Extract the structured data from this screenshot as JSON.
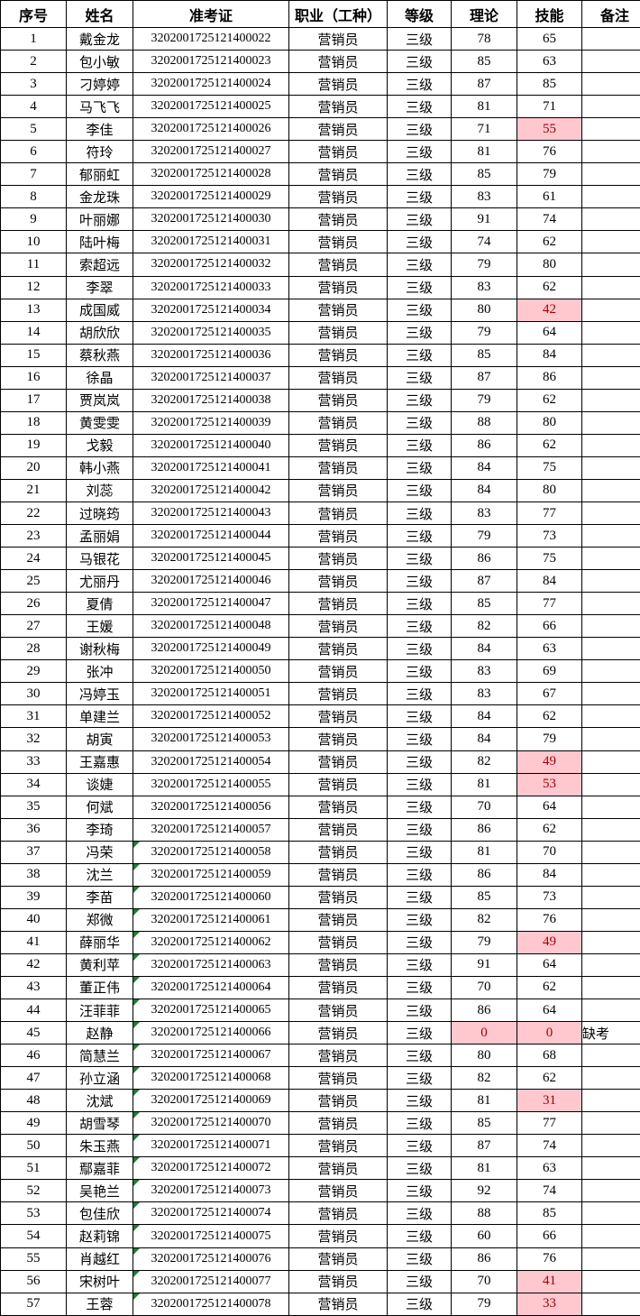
{
  "colors": {
    "low_score_bg": "#ffc7ce",
    "low_score_text": "#9c0006",
    "text_marker_green": "#1e7e34",
    "grid_border": "#000000"
  },
  "table": {
    "columns": [
      {
        "key": "no",
        "label": "序号"
      },
      {
        "key": "name",
        "label": "姓名"
      },
      {
        "key": "id",
        "label": "准考证"
      },
      {
        "key": "job",
        "label": "职业（工种）"
      },
      {
        "key": "level",
        "label": "等级"
      },
      {
        "key": "theory",
        "label": "理论"
      },
      {
        "key": "skill",
        "label": "技能"
      },
      {
        "key": "remark",
        "label": "备注"
      }
    ],
    "rows": [
      {
        "no": "1",
        "name": "戴金龙",
        "id": "3202001725121400022",
        "job": "营销员",
        "level": "三级",
        "theory": "78",
        "skill": "65",
        "remark": "",
        "theory_low": false,
        "skill_low": false,
        "id_marker": false
      },
      {
        "no": "2",
        "name": "包小敏",
        "id": "3202001725121400023",
        "job": "营销员",
        "level": "三级",
        "theory": "85",
        "skill": "63",
        "remark": "",
        "theory_low": false,
        "skill_low": false,
        "id_marker": false
      },
      {
        "no": "3",
        "name": "刁婷婷",
        "id": "3202001725121400024",
        "job": "营销员",
        "level": "三级",
        "theory": "87",
        "skill": "85",
        "remark": "",
        "theory_low": false,
        "skill_low": false,
        "id_marker": false
      },
      {
        "no": "4",
        "name": "马飞飞",
        "id": "3202001725121400025",
        "job": "营销员",
        "level": "三级",
        "theory": "81",
        "skill": "71",
        "remark": "",
        "theory_low": false,
        "skill_low": false,
        "id_marker": false
      },
      {
        "no": "5",
        "name": "李佳",
        "id": "3202001725121400026",
        "job": "营销员",
        "level": "三级",
        "theory": "71",
        "skill": "55",
        "remark": "",
        "theory_low": false,
        "skill_low": true,
        "id_marker": false
      },
      {
        "no": "6",
        "name": "符玲",
        "id": "3202001725121400027",
        "job": "营销员",
        "level": "三级",
        "theory": "81",
        "skill": "76",
        "remark": "",
        "theory_low": false,
        "skill_low": false,
        "id_marker": false
      },
      {
        "no": "7",
        "name": "郁丽虹",
        "id": "3202001725121400028",
        "job": "营销员",
        "level": "三级",
        "theory": "85",
        "skill": "79",
        "remark": "",
        "theory_low": false,
        "skill_low": false,
        "id_marker": false
      },
      {
        "no": "8",
        "name": "金龙珠",
        "id": "3202001725121400029",
        "job": "营销员",
        "level": "三级",
        "theory": "83",
        "skill": "61",
        "remark": "",
        "theory_low": false,
        "skill_low": false,
        "id_marker": false
      },
      {
        "no": "9",
        "name": "叶丽娜",
        "id": "3202001725121400030",
        "job": "营销员",
        "level": "三级",
        "theory": "91",
        "skill": "74",
        "remark": "",
        "theory_low": false,
        "skill_low": false,
        "id_marker": false
      },
      {
        "no": "10",
        "name": "陆叶梅",
        "id": "3202001725121400031",
        "job": "营销员",
        "level": "三级",
        "theory": "74",
        "skill": "62",
        "remark": "",
        "theory_low": false,
        "skill_low": false,
        "id_marker": false
      },
      {
        "no": "11",
        "name": "索超远",
        "id": "3202001725121400032",
        "job": "营销员",
        "level": "三级",
        "theory": "79",
        "skill": "80",
        "remark": "",
        "theory_low": false,
        "skill_low": false,
        "id_marker": false
      },
      {
        "no": "12",
        "name": "李翠",
        "id": "3202001725121400033",
        "job": "营销员",
        "level": "三级",
        "theory": "83",
        "skill": "62",
        "remark": "",
        "theory_low": false,
        "skill_low": false,
        "id_marker": false
      },
      {
        "no": "13",
        "name": "成国威",
        "id": "3202001725121400034",
        "job": "营销员",
        "level": "三级",
        "theory": "80",
        "skill": "42",
        "remark": "",
        "theory_low": false,
        "skill_low": true,
        "id_marker": false
      },
      {
        "no": "14",
        "name": "胡欣欣",
        "id": "3202001725121400035",
        "job": "营销员",
        "level": "三级",
        "theory": "79",
        "skill": "64",
        "remark": "",
        "theory_low": false,
        "skill_low": false,
        "id_marker": false
      },
      {
        "no": "15",
        "name": "蔡秋燕",
        "id": "3202001725121400036",
        "job": "营销员",
        "level": "三级",
        "theory": "85",
        "skill": "84",
        "remark": "",
        "theory_low": false,
        "skill_low": false,
        "id_marker": false
      },
      {
        "no": "16",
        "name": "徐晶",
        "id": "3202001725121400037",
        "job": "营销员",
        "level": "三级",
        "theory": "87",
        "skill": "86",
        "remark": "",
        "theory_low": false,
        "skill_low": false,
        "id_marker": false
      },
      {
        "no": "17",
        "name": "贾岚岚",
        "id": "3202001725121400038",
        "job": "营销员",
        "level": "三级",
        "theory": "79",
        "skill": "62",
        "remark": "",
        "theory_low": false,
        "skill_low": false,
        "id_marker": false
      },
      {
        "no": "18",
        "name": "黄雯雯",
        "id": "3202001725121400039",
        "job": "营销员",
        "level": "三级",
        "theory": "88",
        "skill": "80",
        "remark": "",
        "theory_low": false,
        "skill_low": false,
        "id_marker": false
      },
      {
        "no": "19",
        "name": "戈毅",
        "id": "3202001725121400040",
        "job": "营销员",
        "level": "三级",
        "theory": "86",
        "skill": "62",
        "remark": "",
        "theory_low": false,
        "skill_low": false,
        "id_marker": false
      },
      {
        "no": "20",
        "name": "韩小燕",
        "id": "3202001725121400041",
        "job": "营销员",
        "level": "三级",
        "theory": "84",
        "skill": "75",
        "remark": "",
        "theory_low": false,
        "skill_low": false,
        "id_marker": false
      },
      {
        "no": "21",
        "name": "刘蕊",
        "id": "3202001725121400042",
        "job": "营销员",
        "level": "三级",
        "theory": "84",
        "skill": "80",
        "remark": "",
        "theory_low": false,
        "skill_low": false,
        "id_marker": false
      },
      {
        "no": "22",
        "name": "过晓筠",
        "id": "3202001725121400043",
        "job": "营销员",
        "level": "三级",
        "theory": "83",
        "skill": "77",
        "remark": "",
        "theory_low": false,
        "skill_low": false,
        "id_marker": false
      },
      {
        "no": "23",
        "name": "孟丽娟",
        "id": "3202001725121400044",
        "job": "营销员",
        "level": "三级",
        "theory": "79",
        "skill": "73",
        "remark": "",
        "theory_low": false,
        "skill_low": false,
        "id_marker": false
      },
      {
        "no": "24",
        "name": "马银花",
        "id": "3202001725121400045",
        "job": "营销员",
        "level": "三级",
        "theory": "86",
        "skill": "75",
        "remark": "",
        "theory_low": false,
        "skill_low": false,
        "id_marker": false
      },
      {
        "no": "25",
        "name": "尤丽丹",
        "id": "3202001725121400046",
        "job": "营销员",
        "level": "三级",
        "theory": "87",
        "skill": "84",
        "remark": "",
        "theory_low": false,
        "skill_low": false,
        "id_marker": false
      },
      {
        "no": "26",
        "name": "夏倩",
        "id": "3202001725121400047",
        "job": "营销员",
        "level": "三级",
        "theory": "85",
        "skill": "77",
        "remark": "",
        "theory_low": false,
        "skill_low": false,
        "id_marker": false
      },
      {
        "no": "27",
        "name": "王媛",
        "id": "3202001725121400048",
        "job": "营销员",
        "level": "三级",
        "theory": "82",
        "skill": "66",
        "remark": "",
        "theory_low": false,
        "skill_low": false,
        "id_marker": false
      },
      {
        "no": "28",
        "name": "谢秋梅",
        "id": "3202001725121400049",
        "job": "营销员",
        "level": "三级",
        "theory": "84",
        "skill": "63",
        "remark": "",
        "theory_low": false,
        "skill_low": false,
        "id_marker": false
      },
      {
        "no": "29",
        "name": "张冲",
        "id": "3202001725121400050",
        "job": "营销员",
        "level": "三级",
        "theory": "83",
        "skill": "69",
        "remark": "",
        "theory_low": false,
        "skill_low": false,
        "id_marker": false
      },
      {
        "no": "30",
        "name": "冯婷玉",
        "id": "3202001725121400051",
        "job": "营销员",
        "level": "三级",
        "theory": "83",
        "skill": "67",
        "remark": "",
        "theory_low": false,
        "skill_low": false,
        "id_marker": false
      },
      {
        "no": "31",
        "name": "单建兰",
        "id": "3202001725121400052",
        "job": "营销员",
        "level": "三级",
        "theory": "84",
        "skill": "62",
        "remark": "",
        "theory_low": false,
        "skill_low": false,
        "id_marker": false
      },
      {
        "no": "32",
        "name": "胡寅",
        "id": "3202001725121400053",
        "job": "营销员",
        "level": "三级",
        "theory": "84",
        "skill": "79",
        "remark": "",
        "theory_low": false,
        "skill_low": false,
        "id_marker": false
      },
      {
        "no": "33",
        "name": "王嘉惠",
        "id": "3202001725121400054",
        "job": "营销员",
        "level": "三级",
        "theory": "82",
        "skill": "49",
        "remark": "",
        "theory_low": false,
        "skill_low": true,
        "id_marker": false
      },
      {
        "no": "34",
        "name": "谈婕",
        "id": "3202001725121400055",
        "job": "营销员",
        "level": "三级",
        "theory": "81",
        "skill": "53",
        "remark": "",
        "theory_low": false,
        "skill_low": true,
        "id_marker": false
      },
      {
        "no": "35",
        "name": "何斌",
        "id": "3202001725121400056",
        "job": "营销员",
        "level": "三级",
        "theory": "70",
        "skill": "64",
        "remark": "",
        "theory_low": false,
        "skill_low": false,
        "id_marker": false
      },
      {
        "no": "36",
        "name": "李琦",
        "id": "3202001725121400057",
        "job": "营销员",
        "level": "三级",
        "theory": "86",
        "skill": "62",
        "remark": "",
        "theory_low": false,
        "skill_low": false,
        "id_marker": false
      },
      {
        "no": "37",
        "name": "冯荣",
        "id": "3202001725121400058",
        "job": "营销员",
        "level": "三级",
        "theory": "81",
        "skill": "70",
        "remark": "",
        "theory_low": false,
        "skill_low": false,
        "id_marker": true
      },
      {
        "no": "38",
        "name": "沈兰",
        "id": "3202001725121400059",
        "job": "营销员",
        "level": "三级",
        "theory": "86",
        "skill": "84",
        "remark": "",
        "theory_low": false,
        "skill_low": false,
        "id_marker": true
      },
      {
        "no": "39",
        "name": "李苗",
        "id": "3202001725121400060",
        "job": "营销员",
        "level": "三级",
        "theory": "85",
        "skill": "73",
        "remark": "",
        "theory_low": false,
        "skill_low": false,
        "id_marker": true
      },
      {
        "no": "40",
        "name": "郑微",
        "id": "3202001725121400061",
        "job": "营销员",
        "level": "三级",
        "theory": "82",
        "skill": "76",
        "remark": "",
        "theory_low": false,
        "skill_low": false,
        "id_marker": true
      },
      {
        "no": "41",
        "name": "薛丽华",
        "id": "3202001725121400062",
        "job": "营销员",
        "level": "三级",
        "theory": "79",
        "skill": "49",
        "remark": "",
        "theory_low": false,
        "skill_low": true,
        "id_marker": true
      },
      {
        "no": "42",
        "name": "黄利苹",
        "id": "3202001725121400063",
        "job": "营销员",
        "level": "三级",
        "theory": "91",
        "skill": "64",
        "remark": "",
        "theory_low": false,
        "skill_low": false,
        "id_marker": true
      },
      {
        "no": "43",
        "name": "董正伟",
        "id": "3202001725121400064",
        "job": "营销员",
        "level": "三级",
        "theory": "70",
        "skill": "62",
        "remark": "",
        "theory_low": false,
        "skill_low": false,
        "id_marker": true
      },
      {
        "no": "44",
        "name": "汪菲菲",
        "id": "3202001725121400065",
        "job": "营销员",
        "level": "三级",
        "theory": "86",
        "skill": "64",
        "remark": "",
        "theory_low": false,
        "skill_low": false,
        "id_marker": true
      },
      {
        "no": "45",
        "name": "赵静",
        "id": "3202001725121400066",
        "job": "营销员",
        "level": "三级",
        "theory": "0",
        "skill": "0",
        "remark": "缺考",
        "theory_low": true,
        "skill_low": true,
        "id_marker": true
      },
      {
        "no": "46",
        "name": "简慧兰",
        "id": "3202001725121400067",
        "job": "营销员",
        "level": "三级",
        "theory": "80",
        "skill": "68",
        "remark": "",
        "theory_low": false,
        "skill_low": false,
        "id_marker": true
      },
      {
        "no": "47",
        "name": "孙立涵",
        "id": "3202001725121400068",
        "job": "营销员",
        "level": "三级",
        "theory": "82",
        "skill": "62",
        "remark": "",
        "theory_low": false,
        "skill_low": false,
        "id_marker": true
      },
      {
        "no": "48",
        "name": "沈斌",
        "id": "3202001725121400069",
        "job": "营销员",
        "level": "三级",
        "theory": "81",
        "skill": "31",
        "remark": "",
        "theory_low": false,
        "skill_low": true,
        "id_marker": true
      },
      {
        "no": "49",
        "name": "胡雪琴",
        "id": "3202001725121400070",
        "job": "营销员",
        "level": "三级",
        "theory": "85",
        "skill": "77",
        "remark": "",
        "theory_low": false,
        "skill_low": false,
        "id_marker": true
      },
      {
        "no": "50",
        "name": "朱玉燕",
        "id": "3202001725121400071",
        "job": "营销员",
        "level": "三级",
        "theory": "87",
        "skill": "74",
        "remark": "",
        "theory_low": false,
        "skill_low": false,
        "id_marker": true
      },
      {
        "no": "51",
        "name": "鄢嘉菲",
        "id": "3202001725121400072",
        "job": "营销员",
        "level": "三级",
        "theory": "81",
        "skill": "63",
        "remark": "",
        "theory_low": false,
        "skill_low": false,
        "id_marker": true
      },
      {
        "no": "52",
        "name": "吴艳兰",
        "id": "3202001725121400073",
        "job": "营销员",
        "level": "三级",
        "theory": "92",
        "skill": "74",
        "remark": "",
        "theory_low": false,
        "skill_low": false,
        "id_marker": true
      },
      {
        "no": "53",
        "name": "包佳欣",
        "id": "3202001725121400074",
        "job": "营销员",
        "level": "三级",
        "theory": "88",
        "skill": "85",
        "remark": "",
        "theory_low": false,
        "skill_low": false,
        "id_marker": true
      },
      {
        "no": "54",
        "name": "赵莉锦",
        "id": "3202001725121400075",
        "job": "营销员",
        "level": "三级",
        "theory": "60",
        "skill": "66",
        "remark": "",
        "theory_low": false,
        "skill_low": false,
        "id_marker": true
      },
      {
        "no": "55",
        "name": "肖越红",
        "id": "3202001725121400076",
        "job": "营销员",
        "level": "三级",
        "theory": "86",
        "skill": "76",
        "remark": "",
        "theory_low": false,
        "skill_low": false,
        "id_marker": true
      },
      {
        "no": "56",
        "name": "宋树叶",
        "id": "3202001725121400077",
        "job": "营销员",
        "level": "三级",
        "theory": "70",
        "skill": "41",
        "remark": "",
        "theory_low": false,
        "skill_low": true,
        "id_marker": true
      },
      {
        "no": "57",
        "name": "王蓉",
        "id": "3202001725121400078",
        "job": "营销员",
        "level": "三级",
        "theory": "79",
        "skill": "33",
        "remark": "",
        "theory_low": false,
        "skill_low": true,
        "id_marker": true
      }
    ]
  }
}
